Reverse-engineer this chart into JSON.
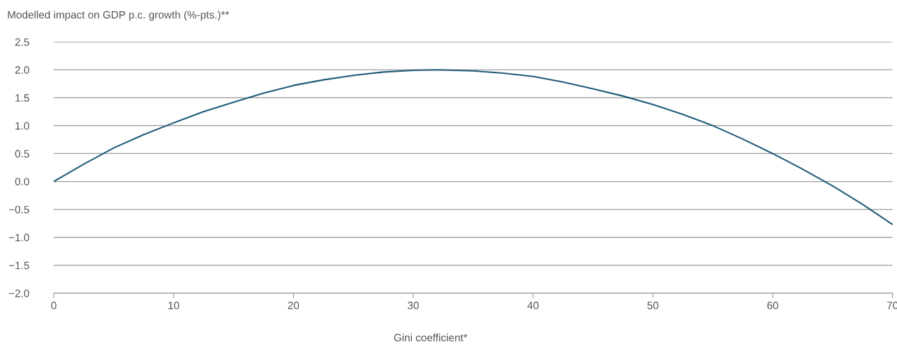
{
  "chart_data": {
    "type": "line",
    "ylabel": "Modelled impact on GDP p.c. growth (%-pts.)**",
    "xlabel": "Gini coefficient*",
    "x": [
      0,
      2.5,
      5,
      7.5,
      10,
      12.5,
      15,
      17.5,
      20,
      22.5,
      25,
      27.5,
      30,
      32,
      35,
      37.5,
      40,
      42.5,
      45,
      47.5,
      50,
      52.5,
      55,
      57.5,
      60,
      62.5,
      65,
      67.5,
      70
    ],
    "series": [
      {
        "color": "#1f5a78",
        "values": [
          0,
          0.31,
          0.6,
          0.84,
          1.05,
          1.25,
          1.42,
          1.58,
          1.72,
          1.82,
          1.9,
          1.96,
          1.99,
          2.0,
          1.98,
          1.94,
          1.88,
          1.78,
          1.66,
          1.53,
          1.38,
          1.2,
          1.0,
          0.76,
          0.5,
          0.22,
          -0.08,
          -0.41,
          -0.77
        ]
      }
    ],
    "xlim": [
      0,
      70
    ],
    "xticks": [
      0,
      10,
      20,
      30,
      40,
      50,
      60,
      70
    ],
    "ylim": [
      -2.0,
      2.5
    ],
    "yticks": [
      {
        "value": -2.0,
        "label": "−2.0"
      },
      {
        "value": -1.5,
        "label": "−1.5"
      },
      {
        "value": -1.0,
        "label": "−1.0"
      },
      {
        "value": -0.5,
        "label": "−0.5"
      },
      {
        "value": 0,
        "label": "0.0"
      },
      {
        "value": 0.5,
        "label": "0.5"
      },
      {
        "value": 1.0,
        "label": "1.0"
      },
      {
        "value": 1.5,
        "label": "1.5"
      },
      {
        "value": 2.0,
        "label": "2.0"
      },
      {
        "value": 2.5,
        "label": "2.5"
      }
    ],
    "grid": "y",
    "legend": false,
    "marker": "none",
    "line_style": "solid"
  }
}
